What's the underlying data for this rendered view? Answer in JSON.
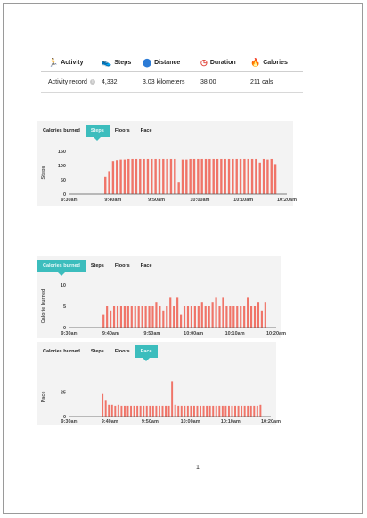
{
  "activity": {
    "headers": [
      {
        "icon": "running-person-icon",
        "glyph": "🏃",
        "label": "Activity"
      },
      {
        "icon": "shoe-icon",
        "glyph": "👟",
        "label": "Steps"
      },
      {
        "icon": "distance-icon",
        "glyph": "⬤",
        "label": "Distance"
      },
      {
        "icon": "clock-icon",
        "glyph": "◷",
        "label": "Duration"
      },
      {
        "icon": "flame-icon",
        "glyph": "🔥",
        "label": "Calories"
      }
    ],
    "row": {
      "record_label": "Activity record",
      "info_glyph": "i",
      "steps": "4,332",
      "distance": "3.03 kilometers",
      "duration": "38:00",
      "calories": "211 cals"
    }
  },
  "bar_color": "#f07468",
  "accent_color": "#3cbdbd",
  "x_ticks": [
    "9:30am",
    "9:40am",
    "9:50am",
    "10:00am",
    "10:10am",
    "10:20am"
  ],
  "chart_data": [
    {
      "type": "bar",
      "tabs": [
        "Calories burned",
        "Steps",
        "Floors",
        "Pace"
      ],
      "active_tab": 1,
      "ylabel": "Steps",
      "ylim": [
        0,
        150
      ],
      "yticks": [
        "150",
        "100",
        "50",
        "0"
      ],
      "x_start_min": 0,
      "x_end_min": 50,
      "values": [
        60,
        80,
        115,
        118,
        120,
        120,
        122,
        122,
        122,
        122,
        122,
        122,
        122,
        122,
        122,
        122,
        122,
        122,
        122,
        40,
        120,
        120,
        122,
        122,
        122,
        122,
        122,
        122,
        122,
        122,
        122,
        122,
        122,
        122,
        122,
        122,
        122,
        122,
        122,
        122,
        110,
        122,
        120,
        122,
        105
      ]
    },
    {
      "type": "bar",
      "tabs": [
        "Calories burned",
        "Steps",
        "Floors",
        "Pace"
      ],
      "active_tab": 0,
      "ylabel": "Calorie burned",
      "ylim": [
        0,
        10
      ],
      "yticks": [
        "10",
        "5",
        "0"
      ],
      "x_start_min": 0,
      "x_end_min": 50,
      "values": [
        3,
        5,
        4,
        5,
        5,
        5,
        5,
        5,
        5,
        5,
        5,
        5,
        5,
        5,
        5,
        6,
        5,
        4,
        5,
        7,
        5,
        7,
        3,
        5,
        5,
        5,
        5,
        5,
        6,
        5,
        5,
        6,
        7,
        5,
        7,
        5,
        5,
        5,
        5,
        5,
        5,
        7,
        5,
        5,
        6,
        4,
        6
      ]
    },
    {
      "type": "bar",
      "tabs": [
        "Calories burned",
        "Steps",
        "Floors",
        "Pace"
      ],
      "active_tab": 3,
      "ylabel": "Pace",
      "ylim": [
        0,
        40
      ],
      "yticks": [
        "25",
        "0"
      ],
      "x_start_min": 0,
      "x_end_min": 50,
      "values": [
        23,
        17,
        12,
        12,
        11,
        12,
        11,
        11,
        11,
        11,
        11,
        11,
        11,
        11,
        11,
        11,
        11,
        11,
        11,
        11,
        11,
        11,
        36,
        12,
        11,
        11,
        11,
        11,
        11,
        11,
        11,
        11,
        11,
        11,
        11,
        11,
        11,
        11,
        11,
        11,
        11,
        11,
        11,
        11,
        11,
        11,
        11,
        11,
        11,
        11,
        12
      ]
    }
  ],
  "page_number": "1"
}
